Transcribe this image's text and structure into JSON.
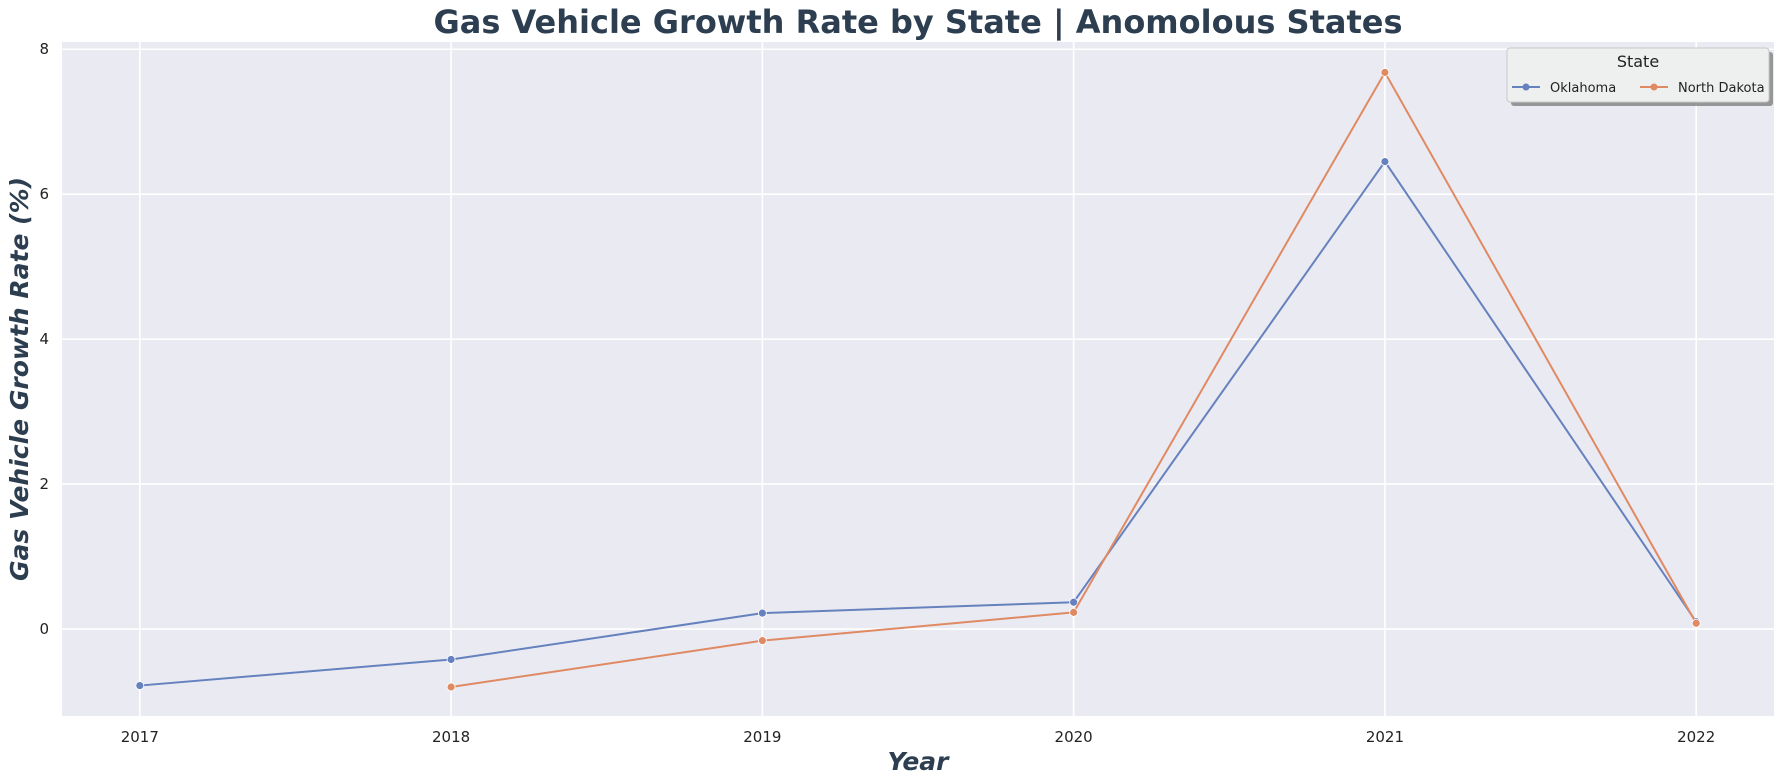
{
  "chart_data": {
    "type": "line",
    "title": "Gas Vehicle Growth Rate by State | Anomolous States",
    "xlabel": "Year",
    "ylabel": "Gas Vehicle Growth Rate (%)",
    "x": [
      2017,
      2018,
      2019,
      2020,
      2021,
      2022
    ],
    "x_tick_labels": [
      "2017",
      "2018",
      "2019",
      "2020",
      "2021",
      "2022"
    ],
    "xlim": [
      2016.75,
      2022.25
    ],
    "ylim": [
      -1.2,
      8.1
    ],
    "y_ticks": [
      0,
      2,
      4,
      6,
      8
    ],
    "y_tick_labels": [
      "0",
      "2",
      "4",
      "6",
      "8"
    ],
    "grid": true,
    "legend": {
      "title": "State",
      "placement": "top-right"
    },
    "series": [
      {
        "name": "Oklahoma",
        "color": "#6582be",
        "values": [
          -0.78,
          -0.42,
          0.22,
          0.37,
          6.45,
          0.1
        ]
      },
      {
        "name": "North Dakota",
        "color": "#e08a63",
        "values": [
          null,
          -0.8,
          -0.16,
          0.23,
          7.68,
          0.08
        ]
      }
    ]
  }
}
